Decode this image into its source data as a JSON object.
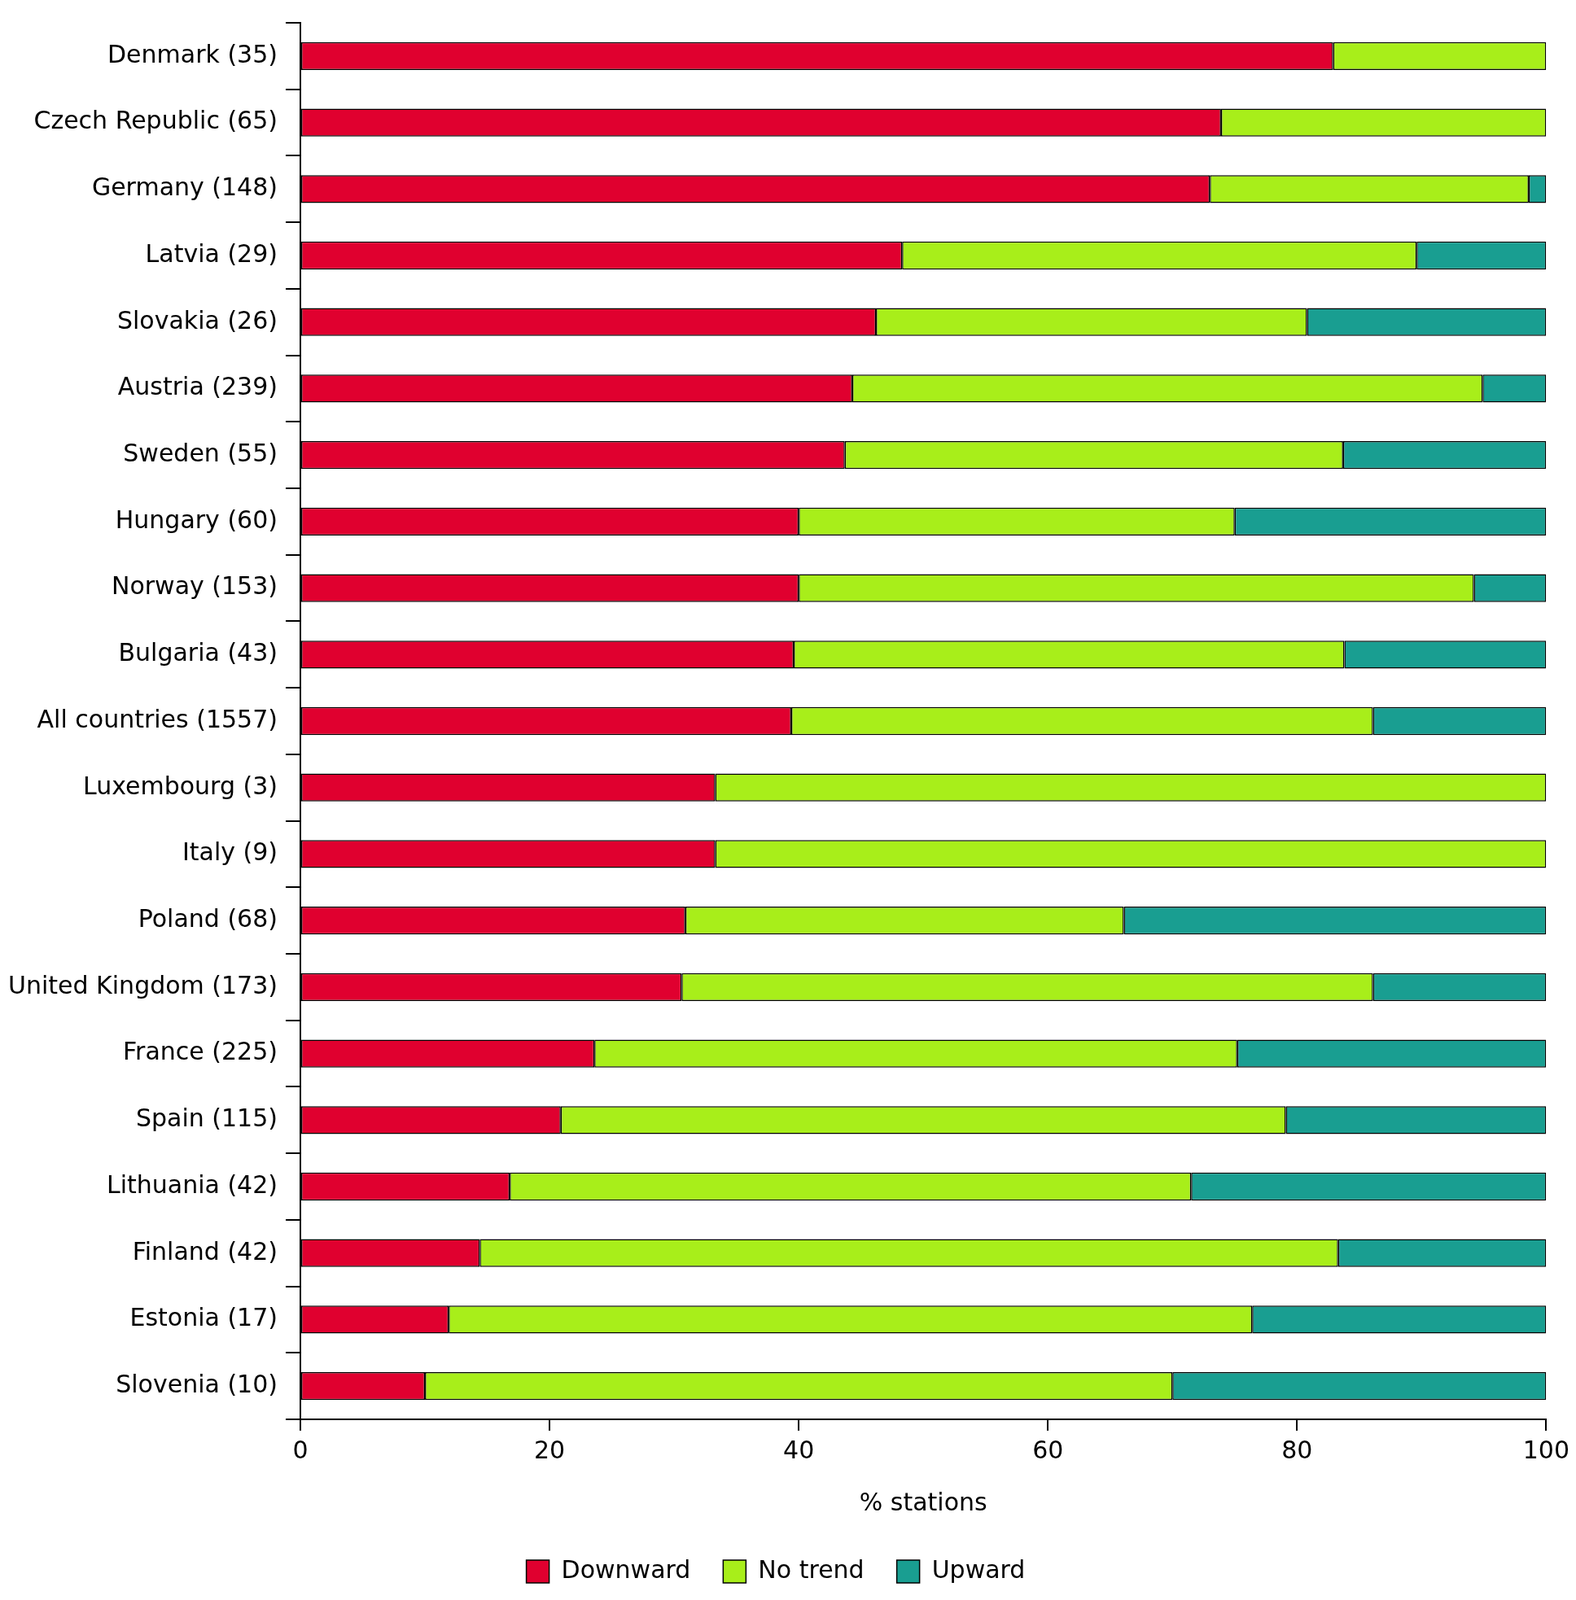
{
  "chart_data": {
    "type": "bar",
    "orientation": "horizontal",
    "stacked": true,
    "x_label": "% stations",
    "categories": [
      "Denmark (35)",
      "Czech Republic (65)",
      "Germany (148)",
      "Latvia (29)",
      "Slovakia (26)",
      "Austria (239)",
      "Sweden (55)",
      "Hungary (60)",
      "Norway (153)",
      "Bulgaria (43)",
      "All countries (1557)",
      "Luxembourg (3)",
      "Italy (9)",
      "Poland (68)",
      "United Kingdom (173)",
      "France (225)",
      "Spain (115)",
      "Lithuania (42)",
      "Finland (42)",
      "Estonia (17)",
      "Slovenia (10)"
    ],
    "series": [
      {
        "name": "Downward",
        "color": "#e0002f",
        "values": [
          82.9,
          73.9,
          73.0,
          48.3,
          46.2,
          44.3,
          43.7,
          40.0,
          40.0,
          39.6,
          39.4,
          33.3,
          33.3,
          30.9,
          30.6,
          23.6,
          20.9,
          16.8,
          14.4,
          11.9,
          10.0
        ]
      },
      {
        "name": "No trend",
        "color": "#a8ee1a",
        "values": [
          17.1,
          26.1,
          25.6,
          41.3,
          34.6,
          50.6,
          40.0,
          35.0,
          54.2,
          44.2,
          46.7,
          66.7,
          66.7,
          35.2,
          55.5,
          51.6,
          58.2,
          54.7,
          68.9,
          64.5,
          60.0
        ]
      },
      {
        "name": "Upward",
        "color": "#199e91",
        "values": [
          0,
          0,
          1.4,
          10.4,
          19.2,
          5.1,
          16.3,
          25.0,
          5.8,
          16.2,
          13.9,
          0,
          0,
          33.9,
          13.9,
          24.8,
          20.9,
          28.5,
          16.7,
          23.6,
          30.0
        ]
      }
    ],
    "xlim": [
      0,
      100
    ],
    "xticks": [
      0,
      20,
      40,
      60,
      80,
      100
    ],
    "grid": false,
    "legend": "bottom"
  }
}
